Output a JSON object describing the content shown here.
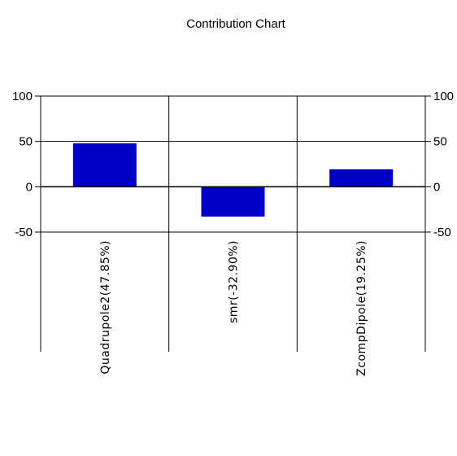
{
  "chart_data": {
    "type": "bar",
    "title": "Contribution Chart",
    "categories": [
      "Quadrupole2(47.85%)",
      "smr(-32.90%)",
      "ZcompDipole(19.25%)"
    ],
    "values": [
      47.85,
      -32.9,
      19.25
    ],
    "ylim": [
      -50,
      100
    ],
    "yticks": [
      100,
      50,
      0,
      -50
    ],
    "ytick_labels": [
      "100",
      "50",
      "0",
      "-50"
    ],
    "xlabel": "",
    "ylabel": "",
    "grid": true,
    "legend": "none",
    "bar_color": "#0000c8",
    "axis_color": "#000000",
    "secondary_y_axis": true
  }
}
